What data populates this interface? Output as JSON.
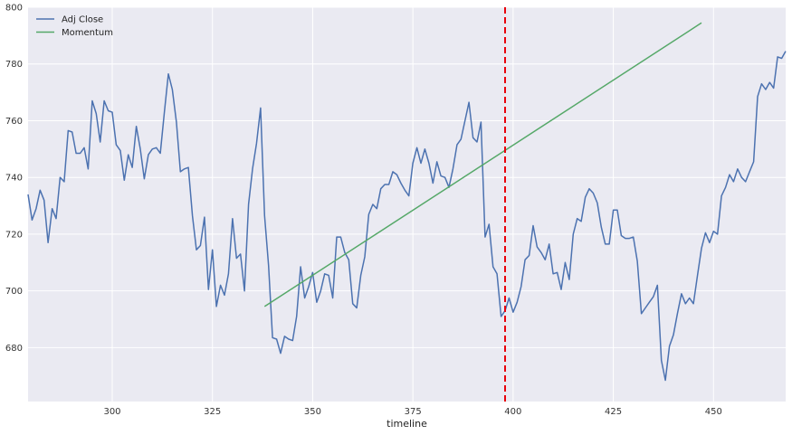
{
  "chart_data": {
    "type": "line",
    "xlabel": "timeline",
    "ylabel": "",
    "xlim": [
      279,
      468
    ],
    "ylim": [
      661,
      800
    ],
    "xticks": [
      300,
      325,
      350,
      375,
      400,
      425,
      450
    ],
    "yticks": [
      680,
      700,
      720,
      740,
      760,
      780,
      800
    ],
    "grid": true,
    "legend_position": "top-left",
    "vertical_marker": {
      "x": 398,
      "color": "#e8000b",
      "style": "dashed"
    },
    "series": [
      {
        "name": "Adj Close",
        "color": "#4c72b0",
        "points": [
          [
            279,
            734
          ],
          [
            280,
            725
          ],
          [
            281,
            729
          ],
          [
            282,
            735.5
          ],
          [
            283,
            732
          ],
          [
            284,
            717
          ],
          [
            285,
            729
          ],
          [
            286,
            725.5
          ],
          [
            287,
            740
          ],
          [
            288,
            738.5
          ],
          [
            289,
            756.5
          ],
          [
            290,
            756
          ],
          [
            291,
            748.5
          ],
          [
            292,
            748.5
          ],
          [
            293,
            750.5
          ],
          [
            294,
            743
          ],
          [
            295,
            767
          ],
          [
            296,
            762.5
          ],
          [
            297,
            752.5
          ],
          [
            298,
            767
          ],
          [
            299,
            763.5
          ],
          [
            300,
            763
          ],
          [
            301,
            751.5
          ],
          [
            302,
            749.5
          ],
          [
            303,
            739
          ],
          [
            304,
            748
          ],
          [
            305,
            743.5
          ],
          [
            306,
            758
          ],
          [
            307,
            750
          ],
          [
            308,
            739.5
          ],
          [
            309,
            748
          ],
          [
            310,
            750
          ],
          [
            311,
            750.5
          ],
          [
            312,
            748.5
          ],
          [
            313,
            763
          ],
          [
            314,
            776.5
          ],
          [
            315,
            771
          ],
          [
            316,
            759.5
          ],
          [
            317,
            742
          ],
          [
            318,
            743
          ],
          [
            319,
            743.5
          ],
          [
            320,
            726.5
          ],
          [
            321,
            714.5
          ],
          [
            322,
            716
          ],
          [
            323,
            726
          ],
          [
            324,
            700.5
          ],
          [
            325,
            714.5
          ],
          [
            326,
            694.5
          ],
          [
            327,
            702
          ],
          [
            328,
            698.5
          ],
          [
            329,
            706
          ],
          [
            330,
            725.5
          ],
          [
            331,
            711.5
          ],
          [
            332,
            713
          ],
          [
            333,
            700
          ],
          [
            334,
            730.5
          ],
          [
            335,
            743
          ],
          [
            336,
            752
          ],
          [
            337,
            764.5
          ],
          [
            338,
            726.5
          ],
          [
            339,
            709
          ],
          [
            340,
            683.5
          ],
          [
            341,
            683
          ],
          [
            342,
            678
          ],
          [
            343,
            684
          ],
          [
            344,
            683
          ],
          [
            345,
            682.5
          ],
          [
            346,
            691
          ],
          [
            347,
            708.5
          ],
          [
            348,
            697.5
          ],
          [
            349,
            701.5
          ],
          [
            350,
            706.5
          ],
          [
            351,
            696
          ],
          [
            352,
            700
          ],
          [
            353,
            706
          ],
          [
            354,
            705.5
          ],
          [
            355,
            697.5
          ],
          [
            356,
            719
          ],
          [
            357,
            719
          ],
          [
            358,
            713.5
          ],
          [
            359,
            711
          ],
          [
            360,
            695.5
          ],
          [
            361,
            694
          ],
          [
            362,
            705.5
          ],
          [
            363,
            712
          ],
          [
            364,
            727
          ],
          [
            365,
            730.5
          ],
          [
            366,
            729
          ],
          [
            367,
            736
          ],
          [
            368,
            737.5
          ],
          [
            369,
            737.5
          ],
          [
            370,
            742
          ],
          [
            371,
            741
          ],
          [
            372,
            738
          ],
          [
            373,
            735.5
          ],
          [
            374,
            733.5
          ],
          [
            375,
            745
          ],
          [
            376,
            750.5
          ],
          [
            377,
            745
          ],
          [
            378,
            750
          ],
          [
            379,
            745
          ],
          [
            380,
            738
          ],
          [
            381,
            745.5
          ],
          [
            382,
            740.5
          ],
          [
            383,
            740
          ],
          [
            384,
            736.5
          ],
          [
            385,
            743
          ],
          [
            386,
            751.5
          ],
          [
            387,
            753.5
          ],
          [
            388,
            760
          ],
          [
            389,
            766.5
          ],
          [
            390,
            754
          ],
          [
            391,
            752.5
          ],
          [
            392,
            759.5
          ],
          [
            393,
            719
          ],
          [
            394,
            723.5
          ],
          [
            395,
            708.5
          ],
          [
            396,
            706
          ],
          [
            397,
            691
          ],
          [
            398,
            693
          ],
          [
            399,
            697.5
          ],
          [
            400,
            692.5
          ],
          [
            401,
            696
          ],
          [
            402,
            701.5
          ],
          [
            403,
            711
          ],
          [
            404,
            712.5
          ],
          [
            405,
            723
          ],
          [
            406,
            715.5
          ],
          [
            407,
            713.5
          ],
          [
            408,
            711
          ],
          [
            409,
            716.5
          ],
          [
            410,
            706
          ],
          [
            411,
            706.5
          ],
          [
            412,
            700.5
          ],
          [
            413,
            710
          ],
          [
            414,
            704
          ],
          [
            415,
            720
          ],
          [
            416,
            725.5
          ],
          [
            417,
            724.5
          ],
          [
            418,
            733
          ],
          [
            419,
            736
          ],
          [
            420,
            734.5
          ],
          [
            421,
            731
          ],
          [
            422,
            722.5
          ],
          [
            423,
            716.5
          ],
          [
            424,
            716.5
          ],
          [
            425,
            728.5
          ],
          [
            426,
            728.5
          ],
          [
            427,
            719.5
          ],
          [
            428,
            718.5
          ],
          [
            429,
            718.5
          ],
          [
            430,
            719
          ],
          [
            431,
            710.5
          ],
          [
            432,
            692
          ],
          [
            433,
            694
          ],
          [
            434,
            696
          ],
          [
            435,
            698
          ],
          [
            436,
            702
          ],
          [
            437,
            675.5
          ],
          [
            438,
            668.5
          ],
          [
            439,
            680.5
          ],
          [
            440,
            684.5
          ],
          [
            441,
            692
          ],
          [
            442,
            699
          ],
          [
            443,
            695.5
          ],
          [
            444,
            697.5
          ],
          [
            445,
            695.5
          ],
          [
            446,
            705.5
          ],
          [
            447,
            715
          ],
          [
            448,
            720.5
          ],
          [
            449,
            717
          ],
          [
            450,
            721
          ],
          [
            451,
            720
          ],
          [
            452,
            733.5
          ],
          [
            453,
            736.5
          ],
          [
            454,
            741
          ],
          [
            455,
            738.5
          ],
          [
            456,
            743
          ],
          [
            457,
            740
          ],
          [
            458,
            738.5
          ],
          [
            459,
            742
          ],
          [
            460,
            745.5
          ],
          [
            461,
            768.5
          ],
          [
            462,
            773
          ],
          [
            463,
            771
          ],
          [
            464,
            773.5
          ],
          [
            465,
            771.5
          ],
          [
            466,
            782.5
          ],
          [
            467,
            782
          ],
          [
            468,
            784.5
          ]
        ]
      },
      {
        "name": "Momentum",
        "color": "#55a868",
        "points": [
          [
            338,
            694.5
          ],
          [
            447,
            794.5
          ]
        ]
      }
    ]
  }
}
